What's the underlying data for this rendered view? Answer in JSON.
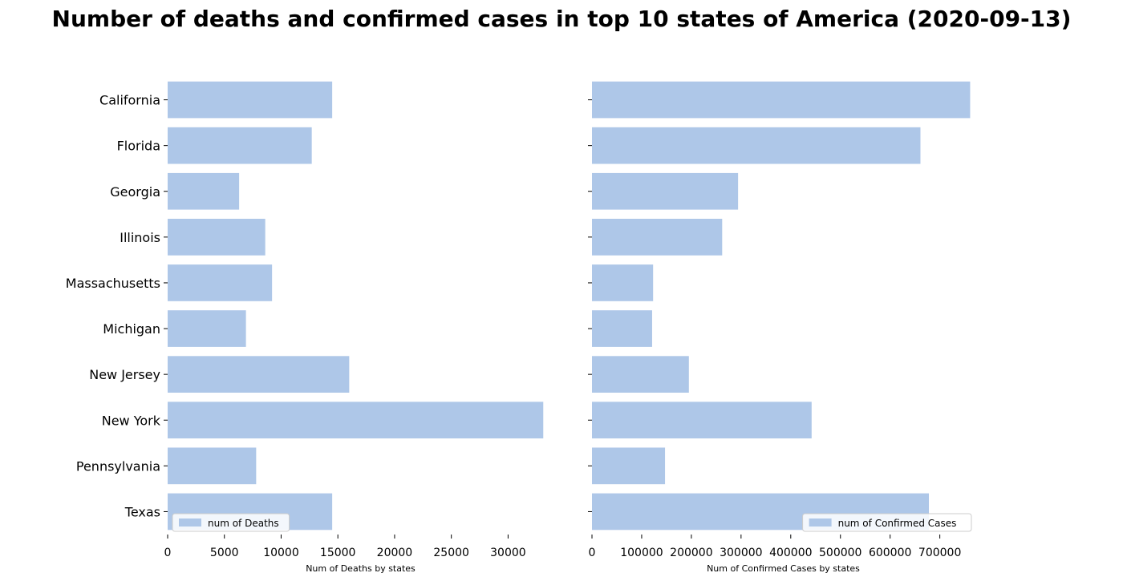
{
  "chart_data": {
    "title": "Number of deaths and confirmed cases in top 10 states of America (2020-09-13)",
    "categories": [
      "California",
      "Florida",
      "Georgia",
      "Illinois",
      "Massachusetts",
      "Michigan",
      "New Jersey",
      "New York",
      "Pennsylvania",
      "Texas"
    ],
    "panels": [
      {
        "type": "bar",
        "orientation": "horizontal",
        "xlabel": "Num of Deaths by states",
        "legend": "num of Deaths",
        "legend_position": "lower left",
        "xlim": [
          0,
          34000
        ],
        "xticks": [
          0,
          5000,
          10000,
          15000,
          20000,
          25000,
          30000
        ],
        "xtick_labels": [
          "0",
          "5000",
          "10000",
          "15000",
          "20000",
          "25000",
          "30000"
        ],
        "values": [
          14500,
          12700,
          6300,
          8600,
          9200,
          6900,
          16000,
          33100,
          7800,
          14500
        ],
        "color": "#aec7e8"
      },
      {
        "type": "bar",
        "orientation": "horizontal",
        "xlabel": "Num of Confirmed Cases by states",
        "legend": "num of Confirmed Cases",
        "legend_position": "lower right",
        "xlim": [
          0,
          770000
        ],
        "xticks": [
          0,
          100000,
          200000,
          300000,
          400000,
          500000,
          600000,
          700000
        ],
        "xtick_labels": [
          "0",
          "100000",
          "200000",
          "300000",
          "400000",
          "500000",
          "600000",
          "700000"
        ],
        "values": [
          761000,
          661000,
          294000,
          262000,
          123000,
          121000,
          195000,
          442000,
          147000,
          678000
        ],
        "color": "#aec7e8"
      }
    ]
  }
}
